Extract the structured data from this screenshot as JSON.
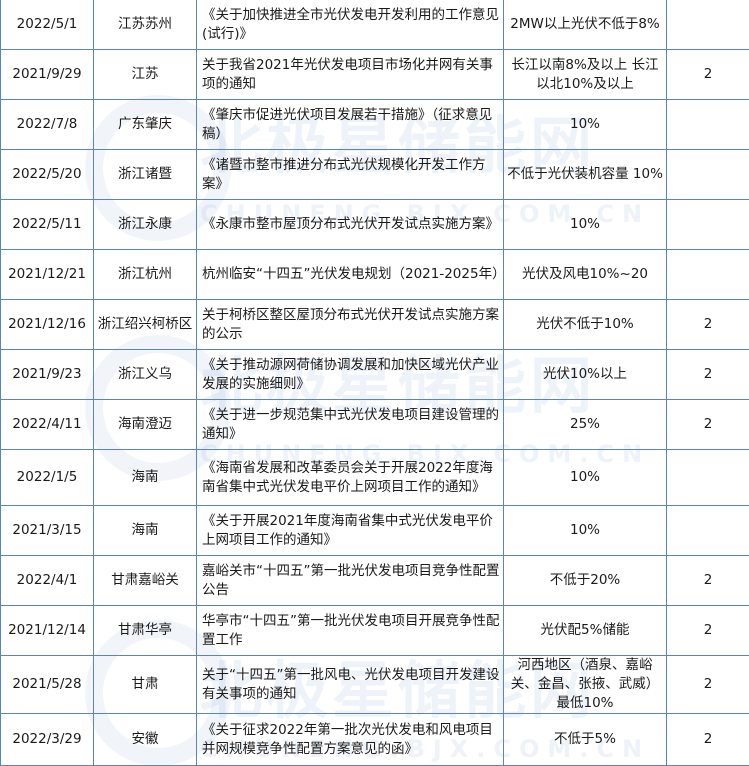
{
  "watermark": {
    "brand": "北极星储能网",
    "domain": "CHUNENG.BJX.COM.CN"
  },
  "rows": [
    {
      "date": "2022/5/1",
      "region": "江苏苏州",
      "document": "《关于加快推进全市光伏发电开发利用的工作意见(试行)》",
      "ratio": "2MW以上光伏不低于8%",
      "hours": ""
    },
    {
      "date": "2021/9/29",
      "region": "江苏",
      "document": "关于我省2021年光伏发电项目市场化并网有关事项的通知",
      "ratio": "长江以南8%及以上 长江以北10%及以上",
      "hours": "2"
    },
    {
      "date": "2022/7/8",
      "region": "广东肇庆",
      "document": "《肇庆市促进光伏项目发展若干措施》（征求意见稿）",
      "ratio": "10%",
      "hours": ""
    },
    {
      "date": "2022/5/20",
      "region": "浙江诸暨",
      "document": "《诸暨市整市推进分布式光伏规模化开发工作方案》",
      "ratio": "不低于光伏装机容量 10%",
      "hours": ""
    },
    {
      "date": "2022/5/11",
      "region": "浙江永康",
      "document": "《永康市整市屋顶分布式光伏开发试点实施方案》",
      "ratio": "10%",
      "hours": ""
    },
    {
      "date": "2021/12/21",
      "region": "浙江杭州",
      "document": "杭州临安“十四五”光伏发电规划（2021-2025年）",
      "ratio": "光伏及风电10%~20",
      "hours": ""
    },
    {
      "date": "2021/12/16",
      "region": "浙江绍兴柯桥区",
      "document": "关于柯桥区整区屋顶分布式光伏开发试点实施方案的公示",
      "ratio": "光伏不低于10%",
      "hours": "2"
    },
    {
      "date": "2021/9/23",
      "region": "浙江义乌",
      "document": "《关于推动源网荷储协调发展和加快区域光伏产业发展的实施细则》",
      "ratio": "光伏10%以上",
      "hours": "2"
    },
    {
      "date": "2022/4/11",
      "region": "海南澄迈",
      "document": "《关于进一步规范集中式光伏发电项目建设管理的通知》",
      "ratio": "25%",
      "hours": "2"
    },
    {
      "date": "2022/1/5",
      "region": "海南",
      "document": "《海南省发展和改革委员会关于开展2022年度海南省集中式光伏发电平价上网项目工作的通知》",
      "ratio": "10%",
      "hours": ""
    },
    {
      "date": "2021/3/15",
      "region": "海南",
      "document": "《关于开展2021年度海南省集中式光伏发电平价上网项目工作的通知》",
      "ratio": "10%",
      "hours": ""
    },
    {
      "date": "2022/4/1",
      "region": "甘肃嘉峪关",
      "document": "嘉峪关市“十四五”第一批光伏发电项目竞争性配置公告",
      "ratio": "不低于20%",
      "hours": "2"
    },
    {
      "date": "2021/12/14",
      "region": "甘肃华亭",
      "document": "华亭市“十四五”第一批光伏发电项目开展竞争性配置工作",
      "ratio": "光伏配5%储能",
      "hours": "2"
    },
    {
      "date": "2021/5/28",
      "region": "甘肃",
      "document": "关于“十四五”第一批风电、光伏发电项目开发建设有关事项的通知",
      "ratio": "河西地区（酒泉、嘉峪关、金昌、张掖、武威）最低10%",
      "hours": "2"
    },
    {
      "date": "2022/3/29",
      "region": "安徽",
      "document": "《关于征求2022年第一批次光伏发电和风电项目并网规模竞争性配置方案意见的函》",
      "ratio": "不低于5%",
      "hours": "2"
    }
  ]
}
